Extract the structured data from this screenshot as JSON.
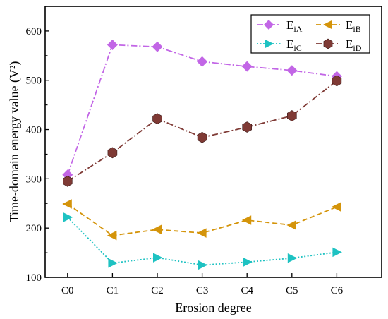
{
  "chart_data": {
    "type": "line",
    "xlabel": "Erosion degree",
    "ylabel": "Time-domain energy value (V²)",
    "categories": [
      "C0",
      "C1",
      "C2",
      "C3",
      "C4",
      "C5",
      "C6"
    ],
    "ylim": [
      100,
      650
    ],
    "yticks": [
      100,
      200,
      300,
      400,
      500,
      600
    ],
    "grid": false,
    "legend_position": "top-right",
    "series": [
      {
        "name": "E",
        "name_sub": "iA",
        "marker": "diamond",
        "line": "dash-dot",
        "color": "#c266e6",
        "values": [
          308,
          572,
          568,
          538,
          528,
          520,
          508
        ]
      },
      {
        "name": "E",
        "name_sub": "iB",
        "marker": "triangle-left",
        "line": "dashed",
        "color": "#d4940a",
        "values": [
          249,
          185,
          197,
          190,
          216,
          206,
          243
        ]
      },
      {
        "name": "E",
        "name_sub": "iC",
        "marker": "triangle-right",
        "line": "dotted",
        "color": "#1ec2c2",
        "values": [
          222,
          129,
          140,
          125,
          131,
          139,
          151
        ]
      },
      {
        "name": "E",
        "name_sub": "iD",
        "marker": "hexagon",
        "line": "dash-dot",
        "color": "#7f3a35",
        "values": [
          295,
          353,
          422,
          384,
          405,
          428,
          499
        ]
      }
    ]
  }
}
